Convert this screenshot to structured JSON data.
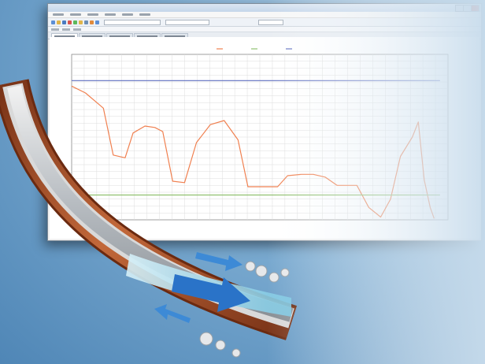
{
  "window": {
    "title": "",
    "tabs": [
      "",
      "",
      "",
      "",
      ""
    ]
  },
  "menu": [
    "",
    "",
    "",
    "",
    "",
    ""
  ],
  "chart_data": {
    "type": "line",
    "title": "",
    "xlabel": "",
    "ylabel": "",
    "x_ticks": [
      "",
      "",
      "",
      "",
      "",
      "",
      "",
      "",
      ""
    ],
    "y_ticks": [
      "",
      "",
      "",
      "",
      "",
      ""
    ],
    "xlim": [
      0,
      9.5
    ],
    "ylim": [
      0,
      6
    ],
    "grid": true,
    "legend_position": "top-center",
    "series": [
      {
        "name": "",
        "color": "#f08050",
        "x": [
          0,
          0.35,
          0.8,
          1.05,
          1.35,
          1.55,
          1.85,
          2.1,
          2.3,
          2.55,
          2.85,
          3.15,
          3.5,
          3.85,
          4.2,
          4.45,
          4.7,
          4.95,
          5.2,
          5.45,
          5.8,
          6.1,
          6.4,
          6.7,
          6.95,
          7.2,
          7.5,
          7.8,
          8.05,
          8.3,
          8.6,
          8.75,
          8.9,
          9.05,
          9.15
        ],
        "y": [
          4.85,
          4.6,
          4.05,
          2.35,
          2.25,
          3.15,
          3.4,
          3.35,
          3.2,
          1.4,
          1.35,
          2.8,
          3.45,
          3.6,
          2.9,
          1.2,
          1.2,
          1.2,
          1.2,
          1.6,
          1.65,
          1.65,
          1.55,
          1.25,
          1.25,
          1.25,
          0.45,
          0.1,
          0.75,
          2.3,
          3.0,
          3.55,
          1.45,
          0.45,
          0.05
        ]
      },
      {
        "name": "",
        "color": "#90c070",
        "x": [
          0,
          9.3
        ],
        "y": [
          0.9,
          0.9
        ]
      },
      {
        "name": "",
        "color": "#6070c0",
        "x": [
          0,
          9.3
        ],
        "y": [
          5.05,
          5.05
        ]
      }
    ]
  },
  "colors": {
    "accent_orange": "#f08050",
    "accent_green": "#90c070",
    "accent_blue": "#6070c0",
    "catheter_copper": "#b2582c",
    "flow_arrow": "#2a73c8"
  },
  "icons": [
    "flow-arrow-icon"
  ]
}
